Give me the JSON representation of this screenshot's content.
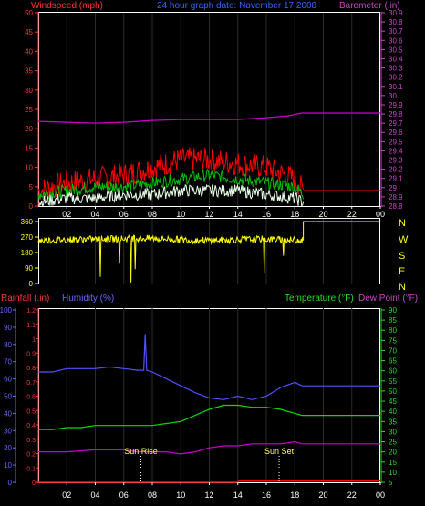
{
  "header": {
    "windspeed_label": "Windspeed (mph)",
    "graph_title": "24 hour graph date: November 17 2008",
    "barometer_label": "Barometer (.in)"
  },
  "compass_letters": [
    "N",
    "W",
    "S",
    "E",
    "N"
  ],
  "bottom_header": {
    "rainfall_label": "Rainfall (.in)",
    "humidity_label": "Humidity (%)",
    "temperature_label": "Temperature (°F)",
    "dewpoint_label": "Dew Point (°F)"
  },
  "annotations": {
    "sunrise": "Sun Rise",
    "sunset": "Sun Set"
  },
  "colors": {
    "wind_gust": "#ff0000",
    "wind_avg": "#00c000",
    "wind_low": "#e8ffe8",
    "barometer": "#cc00cc",
    "wind_direction": "#ffff00",
    "humidity": "#5050ff",
    "temperature": "#00dd00",
    "dew_point": "#cc00cc",
    "rainfall": "#ff0000"
  },
  "chart_data": [
    {
      "type": "line",
      "panel": "wind-barometer",
      "x_tick_labels": [
        "02",
        "04",
        "06",
        "08",
        "10",
        "12",
        "14",
        "16",
        "18",
        "20",
        "22",
        "00"
      ],
      "xlim": [
        0,
        24
      ],
      "left_axis": {
        "label": "Windspeed (mph)",
        "ylim": [
          0,
          50
        ],
        "ticks": [
          "0",
          "5",
          "10",
          "15",
          "20",
          "25",
          "30",
          "35",
          "40",
          "45",
          "50"
        ]
      },
      "right_axis": {
        "label": "Barometer (.in)",
        "ylim": [
          28.8,
          30.9
        ],
        "ticks": [
          "28.8",
          "28.9",
          "29",
          "29.1",
          "29.2",
          "29.3",
          "29.4",
          "29.5",
          "29.6",
          "29.7",
          "29.8",
          "29.9",
          "30",
          "30.1",
          "30.2",
          "30.3",
          "30.4",
          "30.5",
          "30.6",
          "30.7",
          "30.8",
          "30.9"
        ]
      },
      "series": [
        {
          "name": "Barometer",
          "axis": "right",
          "x": [
            0,
            2,
            4,
            6,
            8,
            10,
            12,
            14,
            16,
            17.5,
            18.5,
            24
          ],
          "y": [
            29.72,
            29.71,
            29.7,
            29.71,
            29.73,
            29.74,
            29.74,
            29.74,
            29.76,
            29.78,
            29.81,
            29.81
          ]
        },
        {
          "name": "Wind gust",
          "axis": "left",
          "x": [
            0,
            2,
            4,
            6,
            8,
            10,
            12,
            14,
            16,
            18,
            18.6,
            24
          ],
          "y": [
            4,
            6,
            7,
            8,
            10,
            12,
            12,
            11,
            10,
            7,
            4,
            4
          ]
        },
        {
          "name": "Wind average",
          "axis": "left",
          "x": [
            0,
            2,
            4,
            6,
            8,
            10,
            12,
            14,
            16,
            18,
            18.6
          ],
          "y": [
            3,
            4,
            5,
            5,
            6,
            7,
            8,
            7,
            6,
            5,
            3
          ]
        },
        {
          "name": "Wind low",
          "axis": "left",
          "x": [
            0,
            2,
            4,
            6,
            8,
            10,
            12,
            14,
            16,
            18,
            18.6
          ],
          "y": [
            1,
            2,
            2,
            3,
            3,
            4,
            4,
            4,
            3,
            2,
            1
          ]
        }
      ]
    },
    {
      "type": "line",
      "panel": "wind-direction",
      "xlim": [
        0,
        24
      ],
      "y_axis": {
        "ylim": [
          0,
          360
        ],
        "ticks": [
          "0",
          "90",
          "180",
          "270",
          "360"
        ]
      },
      "series": [
        {
          "name": "Wind direction",
          "x": [
            0,
            2,
            4,
            6,
            8,
            10,
            12,
            14,
            16,
            18,
            18.6,
            24
          ],
          "y": [
            250,
            255,
            258,
            260,
            262,
            255,
            250,
            255,
            258,
            252,
            360,
            360
          ]
        }
      ]
    },
    {
      "type": "line",
      "panel": "rain-humidity-temperature",
      "x_tick_labels": [
        "02",
        "04",
        "06",
        "08",
        "10",
        "12",
        "14",
        "16",
        "18",
        "20",
        "22",
        "00"
      ],
      "xlim": [
        0,
        24
      ],
      "rainfall_axis": {
        "label": "Rainfall (.in)",
        "ylim": [
          0,
          1.2
        ],
        "ticks": [
          "0",
          "0.1",
          "0.2",
          "0.3",
          "0.4",
          "0.5",
          "0.6",
          "0.7",
          "0.8",
          "0.9",
          "1",
          "1.1",
          "1.2"
        ]
      },
      "humidity_axis": {
        "label": "Humidity (%)",
        "ylim": [
          0,
          100
        ],
        "ticks": [
          "0",
          "10",
          "20",
          "30",
          "40",
          "50",
          "60",
          "70",
          "80",
          "90",
          "100"
        ]
      },
      "temperature_axis": {
        "label": "Temperature (°F)",
        "ylim": [
          5,
          90
        ],
        "ticks": [
          "5",
          "10",
          "15",
          "20",
          "25",
          "30",
          "35",
          "40",
          "45",
          "50",
          "55",
          "60",
          "65",
          "70",
          "75",
          "80",
          "85",
          "90"
        ]
      },
      "sunrise_hour": 7.2,
      "sunset_hour": 16.9,
      "series": [
        {
          "name": "Humidity",
          "axis": "humidity",
          "x": [
            0,
            1,
            2,
            3,
            4,
            5,
            6,
            7,
            7.4,
            7.5,
            7.6,
            8,
            9,
            10,
            11,
            12,
            13,
            14,
            15,
            16,
            17,
            18,
            18.5,
            24
          ],
          "y": [
            64,
            64,
            66,
            66,
            66,
            67,
            66,
            65,
            65,
            86,
            65,
            64,
            60,
            56,
            52,
            49,
            48,
            50,
            48,
            50,
            55,
            58,
            56,
            56
          ]
        },
        {
          "name": "Temperature",
          "axis": "temperature",
          "x": [
            0,
            1,
            2,
            3,
            4,
            5,
            6,
            7,
            8,
            9,
            10,
            11,
            12,
            13,
            14,
            15,
            16,
            17,
            18,
            18.5,
            24
          ],
          "y": [
            31,
            31,
            32,
            32,
            33,
            33,
            33,
            33,
            33,
            34,
            35,
            38,
            41,
            43,
            43,
            42,
            42,
            41,
            39,
            38,
            38
          ]
        },
        {
          "name": "Dew Point",
          "axis": "temperature",
          "x": [
            0,
            2,
            4,
            6,
            7,
            8,
            9,
            10,
            11,
            12,
            13,
            14,
            15,
            16,
            17,
            18,
            18.5,
            24
          ],
          "y": [
            20,
            20,
            21,
            21,
            20,
            20,
            20,
            19,
            20,
            22,
            23,
            23,
            24,
            24,
            24,
            25,
            24,
            24
          ]
        },
        {
          "name": "Rainfall",
          "axis": "rainfall",
          "x": [
            0,
            14,
            14.1,
            24
          ],
          "y": [
            0,
            0,
            0.01,
            0.01
          ]
        }
      ]
    }
  ]
}
